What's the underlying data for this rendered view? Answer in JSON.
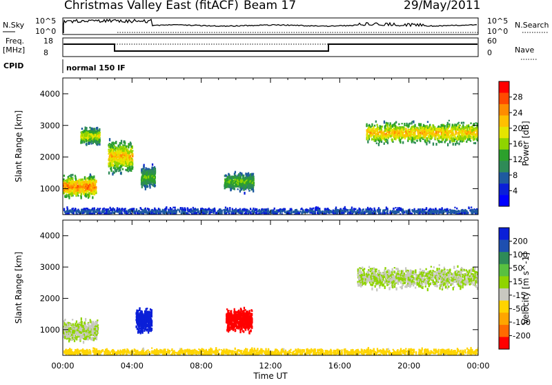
{
  "header": {
    "station": "Christmas Valley East (fitACF)",
    "beam": "Beam 17",
    "date": "29/May/2011"
  },
  "summary_panels": {
    "nsky_label": "N.Sky",
    "nsky_ticks": [
      "10^5",
      "10^0"
    ],
    "nsearch_label": "N.Search",
    "nsearch_ticks": [
      "10^5",
      "10^0"
    ],
    "freq_label_line1": "Freq.",
    "freq_label_line2": "[MHz]",
    "freq_ticks": [
      "18",
      "8"
    ],
    "nave_label": "Nave",
    "nave_ticks": [
      "60",
      "0"
    ],
    "cpid_label": "CPID",
    "cpid_value": "normal 150 IF"
  },
  "legend_power": {
    "label": "Power [dB]",
    "ticks": [
      "28",
      "24",
      "20",
      "16",
      "12",
      "8",
      "4"
    ],
    "colors": [
      "#ff0000",
      "#ff4a00",
      "#ff8c00",
      "#ffc000",
      "#e5e500",
      "#8fd400",
      "#2ca02c",
      "#2e8b57",
      "#1e5aa0",
      "#0a1fd8",
      "#0000ff"
    ]
  },
  "legend_velocity": {
    "label": "Velocity [m s^-1]",
    "ticks": [
      "200",
      "100",
      "50",
      "15",
      "-15",
      "-50",
      "-100",
      "-200"
    ],
    "colors": [
      "#0a1fd8",
      "#1e4fb0",
      "#2e8b57",
      "#58c040",
      "#8fd400",
      "#c8c8c0",
      "#ffd400",
      "#ffa500",
      "#ff6a00",
      "#ff0000"
    ]
  },
  "chart_data": {
    "type": "heatmap",
    "x_label": "Time UT",
    "x_ticks": [
      "00:00",
      "04:00",
      "08:00",
      "12:00",
      "16:00",
      "20:00",
      "00:00"
    ],
    "x_range_hours": [
      0,
      24
    ],
    "y_label": "Slant Range [km]",
    "y_ticks": [
      1000,
      2000,
      3000,
      4000
    ],
    "y_range_km": [
      180,
      4500
    ],
    "panels": [
      {
        "name": "Power",
        "variable": "power_db",
        "scale": [
          0,
          30
        ],
        "features": [
          {
            "t": [
              0.0,
              1.9
            ],
            "range": [
              700,
              1500
            ],
            "peak": 28
          },
          {
            "t": [
              1.0,
              2.1
            ],
            "range": [
              2400,
              3000
            ],
            "peak": 20
          },
          {
            "t": [
              2.6,
              4.0
            ],
            "range": [
              1500,
              2600
            ],
            "peak": 24
          },
          {
            "t": [
              4.5,
              5.3
            ],
            "range": [
              1000,
              1800
            ],
            "peak": 16
          },
          {
            "t": [
              9.3,
              11.0
            ],
            "range": [
              900,
              1600
            ],
            "peak": 16
          },
          {
            "t": [
              17.5,
              24.0
            ],
            "range": [
              2400,
              3200
            ],
            "peak": 24
          },
          {
            "t": [
              0.0,
              24.0
            ],
            "range": [
              180,
              450
            ],
            "peak": 8
          }
        ]
      },
      {
        "name": "Velocity",
        "variable": "velocity_ms",
        "scale": [
          -200,
          200
        ],
        "features": [
          {
            "t": [
              4.2,
              5.1
            ],
            "range": [
              900,
              1800
            ],
            "value": 200
          },
          {
            "t": [
              9.4,
              10.9
            ],
            "range": [
              900,
              1800
            ],
            "value": -200
          },
          {
            "t": [
              0.0,
              2.0
            ],
            "range": [
              600,
              1400
            ],
            "value": 0
          },
          {
            "t": [
              17.0,
              24.0
            ],
            "range": [
              2300,
              3100
            ],
            "value": 0
          },
          {
            "t": [
              0.0,
              24.0
            ],
            "range": [
              180,
              450
            ],
            "value": -50
          }
        ]
      }
    ]
  }
}
